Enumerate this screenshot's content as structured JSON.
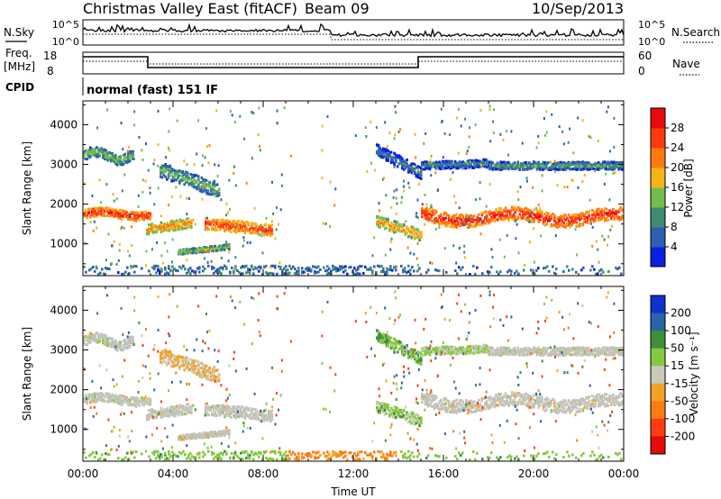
{
  "header": {
    "station": "Christmas Valley East (fitACF)",
    "beam": "Beam 09",
    "date": "10/Sep/2013"
  },
  "top_panels": {
    "nsky_label": "N.Sky",
    "nsky_ticks": [
      "10^5",
      "10^0"
    ],
    "nsearch_label": "N.Search",
    "nsearch_ticks": [
      "10^5",
      "10^0"
    ],
    "freq_label_line1": "Freq.",
    "freq_label_line2": "[MHz]",
    "freq_ticks": [
      "18",
      "8"
    ],
    "nave_label": "Nave",
    "nave_ticks": [
      "60",
      "0"
    ],
    "cpid_label": "CPID",
    "cpid_value": "normal (fast) 151 IF"
  },
  "colors": {
    "power_scale": [
      "#0b1fe0",
      "#2e5fb0",
      "#3d8c73",
      "#74bb4e",
      "#f2b418",
      "#ff7a12",
      "#ff3a10",
      "#e80c0c"
    ],
    "velocity_scale": [
      "#1030d0",
      "#2a64a8",
      "#3e8e3a",
      "#86c840",
      "#c9c9bd",
      "#f4a028",
      "#ff7b14",
      "#ff3d10",
      "#e60a0a"
    ],
    "ground_scatter": "#c2c2b8"
  },
  "chart_data": [
    {
      "type": "heatmap",
      "title": "",
      "xlabel": "",
      "ylabel": "Slant Range [km]",
      "x_ticks": [
        "00:00",
        "04:00",
        "08:00",
        "12:00",
        "16:00",
        "20:00",
        "00:00"
      ],
      "y_ticks": [
        "1000",
        "2000",
        "3000",
        "4000"
      ],
      "ylim": [
        200,
        4600
      ],
      "xlim_hours": [
        0,
        24
      ],
      "colorbar": {
        "label": "Power [dB]",
        "ticks": [
          "4",
          "8",
          "12",
          "16",
          "20",
          "24",
          "28"
        ],
        "range": [
          0,
          30
        ]
      },
      "features": [
        {
          "time_start": 0.0,
          "time_end": 3.0,
          "range_km": 1800,
          "power_db": 26
        },
        {
          "time_start": 0.0,
          "time_end": 2.2,
          "range_km": 3300,
          "power_db": 15
        },
        {
          "time_start": 2.8,
          "time_end": 4.8,
          "range_km": 1550,
          "power_db": 22
        },
        {
          "time_start": 5.5,
          "time_end": 8.3,
          "range_km": 1500,
          "power_db": 25
        },
        {
          "time_start": 13.0,
          "time_end": 15.0,
          "range_km": 1700,
          "power_db": 20
        },
        {
          "time_start": 15.0,
          "time_end": 24.0,
          "range_km": 1650,
          "power_db": 27
        },
        {
          "time_start": 15.5,
          "time_end": 24.0,
          "range_km": 3000,
          "power_db": 12
        }
      ]
    },
    {
      "type": "heatmap",
      "title": "",
      "xlabel": "Time UT",
      "ylabel": "Slant Range [km]",
      "x_ticks": [
        "00:00",
        "04:00",
        "08:00",
        "12:00",
        "16:00",
        "20:00",
        "00:00"
      ],
      "y_ticks": [
        "1000",
        "2000",
        "3000",
        "4000"
      ],
      "ylim": [
        200,
        4600
      ],
      "xlim_hours": [
        0,
        24
      ],
      "colorbar": {
        "label": "Velocity [m s⁻¹]",
        "ticks": [
          "200",
          "100",
          "50",
          "15",
          "-15",
          "-50",
          "-100",
          "-200"
        ],
        "range": [
          -250,
          250
        ]
      },
      "features": [
        {
          "time_start": 0.0,
          "time_end": 8.5,
          "range_km": 1700,
          "velocity": 0,
          "ground_scatter": true
        },
        {
          "time_start": 5.0,
          "time_end": 6.3,
          "range_km": 1700,
          "velocity": -60
        },
        {
          "time_start": 10.0,
          "time_end": 14.0,
          "range_km": 350,
          "velocity": -60
        },
        {
          "time_start": 0.0,
          "time_end": 10.0,
          "range_km": 300,
          "velocity": 40
        },
        {
          "time_start": 15.0,
          "time_end": 24.0,
          "range_km": 1700,
          "velocity": 0,
          "ground_scatter": true
        }
      ]
    }
  ]
}
